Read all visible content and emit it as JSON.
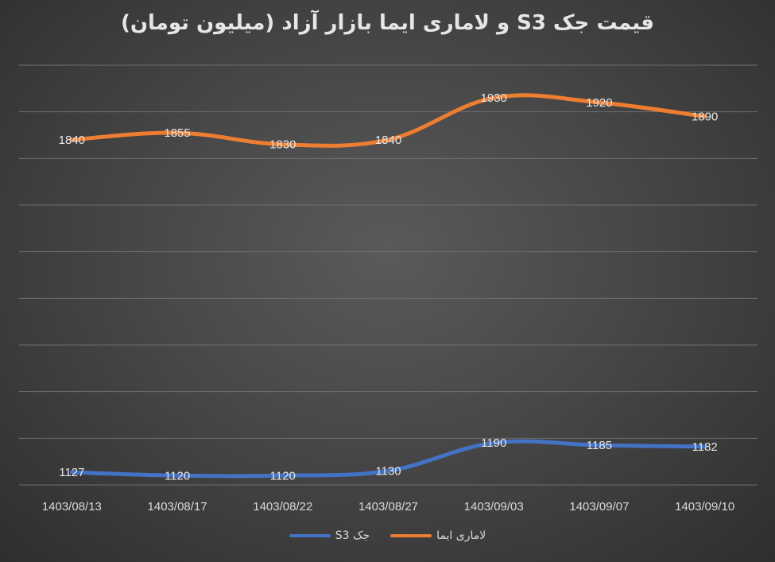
{
  "chart_data": {
    "type": "line",
    "title": "قیمت جک S3 و لاماری ایما بازار آزاد (میلیون تومان)",
    "categories": [
      "1403/08/13",
      "1403/08/17",
      "1403/08/22",
      "1403/08/27",
      "1403/09/03",
      "1403/09/07",
      "1403/09/10"
    ],
    "series": [
      {
        "name": "لاماری ایما",
        "color": "#ED7D31",
        "values": [
          1840,
          1855,
          1830,
          1840,
          1930,
          1920,
          1890
        ]
      },
      {
        "name": "جک S3",
        "color": "#4472C4",
        "values": [
          1127,
          1120,
          1120,
          1130,
          1190,
          1185,
          1182
        ]
      }
    ],
    "ylim": [
      1100,
      2000
    ],
    "grid": true,
    "legend": "bottom",
    "xlabel": "",
    "ylabel": ""
  },
  "legend": {
    "items": [
      {
        "label": "جک S3",
        "color": "#4472C4"
      },
      {
        "label": "لاماری ایما",
        "color": "#ED7D31"
      }
    ]
  }
}
